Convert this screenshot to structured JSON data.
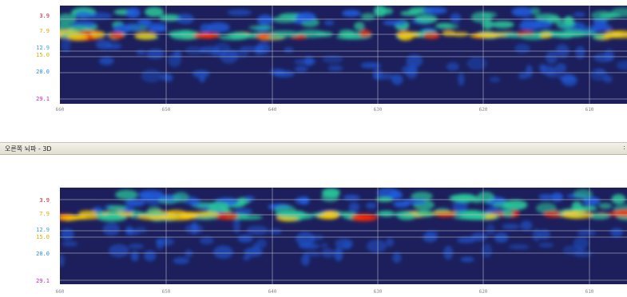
{
  "window_title": "오른쪽 뇌파 - 3D",
  "close_glyph": ":",
  "panels": [
    {
      "id": "top",
      "y_labels": [
        {
          "text": "3.9",
          "value": 3.9,
          "color": "#e0102a"
        },
        {
          "text": "7.9",
          "value": 7.9,
          "color": "#e8a800"
        },
        {
          "text": "12.9",
          "value": 12.9,
          "color": "#3aa0e0"
        },
        {
          "text": "15.0",
          "value": 15.0,
          "color": "#d6b000"
        },
        {
          "text": "20.0",
          "value": 20.0,
          "color": "#2a8ae8"
        },
        {
          "text": "29.1",
          "value": 29.1,
          "color": "#d020c8"
        }
      ],
      "x_ticks": [
        "660",
        "650",
        "640",
        "630",
        "620",
        "610"
      ]
    },
    {
      "id": "bottom",
      "y_labels": [
        {
          "text": "3.9",
          "value": 3.9,
          "color": "#e0102a"
        },
        {
          "text": "7.9",
          "value": 7.9,
          "color": "#e8a800"
        },
        {
          "text": "12.9",
          "value": 12.9,
          "color": "#3aa0e0"
        },
        {
          "text": "15.0",
          "value": 15.0,
          "color": "#d6b000"
        },
        {
          "text": "20.0",
          "value": 20.0,
          "color": "#2a8ae8"
        },
        {
          "text": "29.1",
          "value": 29.1,
          "color": "#d020c8"
        }
      ],
      "x_ticks": [
        "660",
        "650",
        "640",
        "630",
        "620",
        "610"
      ]
    }
  ],
  "colors": {
    "background": "#1c1f5c",
    "grid": "#b8b8c8",
    "hot": "#ff2a00",
    "warm": "#ffd000",
    "mid": "#29c89a",
    "cool": "#1f5de0"
  }
}
